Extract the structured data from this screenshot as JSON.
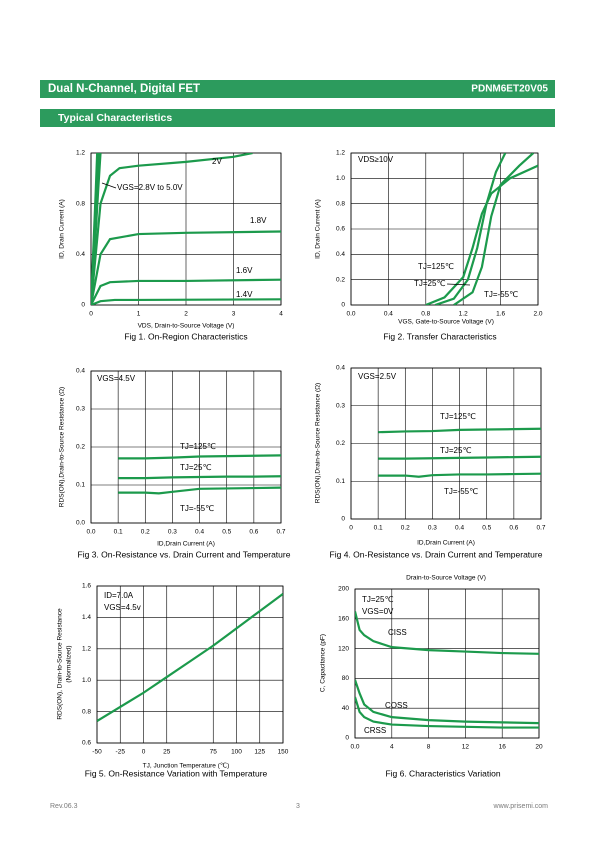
{
  "header": {
    "title": "Dual  N-Channel, Digital FET",
    "part": "PDNM6ET20V05"
  },
  "section_title": "Typical Characteristics",
  "chart_data": [
    {
      "type": "line",
      "caption": "Fig 1. On-Region Characteristics",
      "x_label": "VDS, Drain-to-Source Voltage (V)",
      "y_label": [
        "ID, Drain Current (A)"
      ],
      "annotations": [
        "VGS=2.8V to 5.0V"
      ],
      "xlim": [
        0,
        4
      ],
      "xticks": [
        0,
        1,
        2,
        3,
        4
      ],
      "ylim": [
        0,
        1.2
      ],
      "yticks": [
        0,
        0.4,
        0.8,
        1.2
      ],
      "grid": true,
      "color": "#1c9a4c",
      "series": [
        {
          "name": "2V",
          "x": [
            0,
            0.2,
            0.4,
            0.6,
            1,
            2,
            3,
            3.4
          ],
          "values": [
            0,
            0.8,
            1.02,
            1.08,
            1.1,
            1.13,
            1.17,
            1.2
          ]
        },
        {
          "name": "1.8V",
          "x": [
            0,
            0.2,
            0.4,
            1,
            2,
            4
          ],
          "values": [
            0,
            0.4,
            0.52,
            0.56,
            0.57,
            0.58
          ]
        },
        {
          "name": "1.6V",
          "x": [
            0,
            0.2,
            0.4,
            1,
            2,
            4
          ],
          "values": [
            0,
            0.15,
            0.18,
            0.19,
            0.19,
            0.2
          ]
        },
        {
          "name": "1.4V",
          "x": [
            0,
            0.2,
            0.5,
            1,
            4
          ],
          "values": [
            0,
            0.03,
            0.04,
            0.04,
            0.045
          ]
        }
      ],
      "extra_series": [
        {
          "x": [
            0,
            0.05,
            0.1,
            0.13
          ],
          "values": [
            0,
            0.45,
            0.9,
            1.2
          ]
        },
        {
          "x": [
            0,
            0.06,
            0.12,
            0.16
          ],
          "values": [
            0,
            0.45,
            0.9,
            1.2
          ]
        },
        {
          "x": [
            0,
            0.08,
            0.15,
            0.2
          ],
          "values": [
            0,
            0.45,
            0.9,
            1.2
          ]
        }
      ]
    },
    {
      "type": "line",
      "caption": "Fig 2. Transfer Characteristics",
      "x_label": "VGS, Gate-to-Source Voltage (V)",
      "y_label": [
        "ID, Drain Current (A)"
      ],
      "annotations": [
        "VDS≥10V"
      ],
      "xlim": [
        0,
        2
      ],
      "xticks": [
        {
          "value": 0,
          "label": "0.0"
        },
        0.4,
        0.8,
        1.2,
        1.6,
        {
          "value": 2,
          "label": "2.0"
        }
      ],
      "ylim": [
        0,
        1.2
      ],
      "yticks": [
        0,
        0.2,
        0.4,
        0.6,
        0.8,
        {
          "value": 1,
          "label": "1.0"
        },
        1.2
      ],
      "grid": true,
      "color": "#1c9a4c",
      "series": [
        {
          "name": "TJ=125℃",
          "x": [
            0.8,
            1.0,
            1.2,
            1.3,
            1.4,
            1.5,
            1.7,
            2.0
          ],
          "values": [
            0,
            0.06,
            0.22,
            0.45,
            0.72,
            0.88,
            1.0,
            1.1
          ]
        },
        {
          "name": "TJ=25℃",
          "x": [
            0.9,
            1.1,
            1.25,
            1.35,
            1.45,
            1.55,
            1.65
          ],
          "values": [
            0,
            0.05,
            0.2,
            0.45,
            0.8,
            1.05,
            1.2
          ]
        },
        {
          "name": "TJ=-55℃",
          "x": [
            1.1,
            1.3,
            1.4,
            1.5,
            1.6,
            1.8,
            1.95
          ],
          "values": [
            0,
            0.1,
            0.3,
            0.7,
            0.95,
            1.1,
            1.2
          ]
        }
      ]
    },
    {
      "type": "line",
      "caption": "Fig 3. On-Resistance vs. Drain Current and Temperature",
      "x_label": "ID,Drain Current (A)",
      "y_label": [
        "RDS(ON),Drain-to-Source Resistance (Ω)"
      ],
      "annotations": [
        "VGS=4.5V"
      ],
      "xlim": [
        0,
        0.7
      ],
      "xticks": [
        {
          "value": 0,
          "label": "0.0"
        },
        0.1,
        0.2,
        0.3,
        0.4,
        0.5,
        0.6,
        0.7
      ],
      "ylim": [
        0,
        0.4
      ],
      "yticks": [
        {
          "value": 0,
          "label": "0.0"
        },
        0.1,
        0.2,
        0.3,
        0.4
      ],
      "grid": true,
      "color": "#1c9a4c",
      "series": [
        {
          "name": "TJ=125℃",
          "x": [
            0.1,
            0.2,
            0.3,
            0.4,
            0.5,
            0.6,
            0.7
          ],
          "values": [
            0.17,
            0.17,
            0.172,
            0.175,
            0.176,
            0.177,
            0.178
          ]
        },
        {
          "name": "TJ=25℃",
          "x": [
            0.1,
            0.2,
            0.3,
            0.4,
            0.5,
            0.6,
            0.7
          ],
          "values": [
            0.118,
            0.118,
            0.12,
            0.121,
            0.122,
            0.122,
            0.123
          ]
        },
        {
          "name": "TJ=-55℃",
          "x": [
            0.1,
            0.2,
            0.25,
            0.3,
            0.4,
            0.5,
            0.6,
            0.7
          ],
          "values": [
            0.08,
            0.08,
            0.078,
            0.082,
            0.09,
            0.091,
            0.092,
            0.093
          ]
        }
      ]
    },
    {
      "type": "line",
      "caption": "Fig 4. On-Resistance vs. Drain Current and Temperature",
      "x_label": "ID,Drain Current (A)",
      "y_label": [
        "RDS(ON),Drain-to-Source Resistance (Ω)"
      ],
      "annotations": [
        "VGS=2.5V"
      ],
      "xlim": [
        0,
        0.7
      ],
      "xticks": [
        0,
        0.1,
        0.2,
        0.3,
        0.4,
        0.5,
        0.6,
        0.7
      ],
      "ylim": [
        0,
        0.4
      ],
      "yticks": [
        0,
        0.1,
        0.2,
        0.3,
        0.4
      ],
      "grid": true,
      "color": "#1c9a4c",
      "series": [
        {
          "name": "TJ=125℃",
          "x": [
            0.1,
            0.2,
            0.3,
            0.4,
            0.5,
            0.6,
            0.7
          ],
          "values": [
            0.23,
            0.232,
            0.233,
            0.236,
            0.237,
            0.238,
            0.239
          ]
        },
        {
          "name": "TJ=25℃",
          "x": [
            0.1,
            0.2,
            0.3,
            0.4,
            0.5,
            0.6,
            0.7
          ],
          "values": [
            0.16,
            0.16,
            0.161,
            0.162,
            0.163,
            0.164,
            0.165
          ]
        },
        {
          "name": "TJ=-55℃",
          "x": [
            0.1,
            0.2,
            0.25,
            0.3,
            0.4,
            0.5,
            0.6,
            0.7
          ],
          "values": [
            0.115,
            0.115,
            0.112,
            0.116,
            0.118,
            0.118,
            0.119,
            0.12
          ]
        }
      ]
    },
    {
      "type": "line",
      "caption": "Fig 5. On-Resistance Variation with Temperature",
      "x_label": "TJ, Junction Temperature (℃)",
      "y_label": [
        "RDS(ON), Drain-to-Source Resistance",
        "(Normalized)"
      ],
      "annotations": [
        "ID=7.0A",
        "VGS=4.5v"
      ],
      "xlim": [
        -50,
        150
      ],
      "xticks": [
        -50,
        -25,
        0,
        25,
        75,
        100,
        125,
        150
      ],
      "ylim": [
        0.6,
        1.6
      ],
      "yticks": [
        0.6,
        0.8,
        {
          "value": 1,
          "label": "1.0"
        },
        1.2,
        1.4,
        1.6
      ],
      "grid": true,
      "color": "#1c9a4c",
      "series": [
        {
          "x": [
            -50,
            0,
            25,
            50,
            75,
            100,
            125,
            150
          ],
          "values": [
            0.74,
            0.92,
            1.02,
            1.12,
            1.22,
            1.33,
            1.44,
            1.55
          ]
        }
      ]
    },
    {
      "type": "line",
      "caption": "Fig 6. Characteristics Variation",
      "x_label": "Drain-to-Source Voltage (V)",
      "y_label": [
        "C, Capacitance (pF)"
      ],
      "annotations": [
        "TJ=25℃",
        "VGS=0V"
      ],
      "xlim": [
        0,
        20
      ],
      "xticks": [
        {
          "value": 0,
          "label": "0.0"
        },
        4,
        8,
        12,
        16,
        20
      ],
      "ylim": [
        0,
        200
      ],
      "yticks": [
        0,
        40,
        80,
        120,
        160,
        200
      ],
      "grid": true,
      "color": "#1c9a4c",
      "series": [
        {
          "name": "CISS",
          "x": [
            0,
            0.5,
            1,
            2,
            4,
            8,
            12,
            16,
            20
          ],
          "values": [
            170,
            145,
            138,
            130,
            122,
            118,
            116,
            114,
            113
          ]
        },
        {
          "name": "COSS",
          "x": [
            0,
            0.5,
            1,
            2,
            4,
            8,
            12,
            16,
            20
          ],
          "values": [
            78,
            60,
            45,
            35,
            28,
            24,
            22,
            21,
            20
          ]
        },
        {
          "name": "CRSS",
          "x": [
            0,
            0.5,
            1,
            2,
            4,
            8,
            12,
            16,
            20
          ],
          "values": [
            55,
            35,
            28,
            22,
            18,
            16,
            15,
            14,
            14
          ]
        }
      ]
    }
  ],
  "footer": {
    "revision": "Rev.06.3",
    "page": "3",
    "website": "www.prisemi.com"
  }
}
